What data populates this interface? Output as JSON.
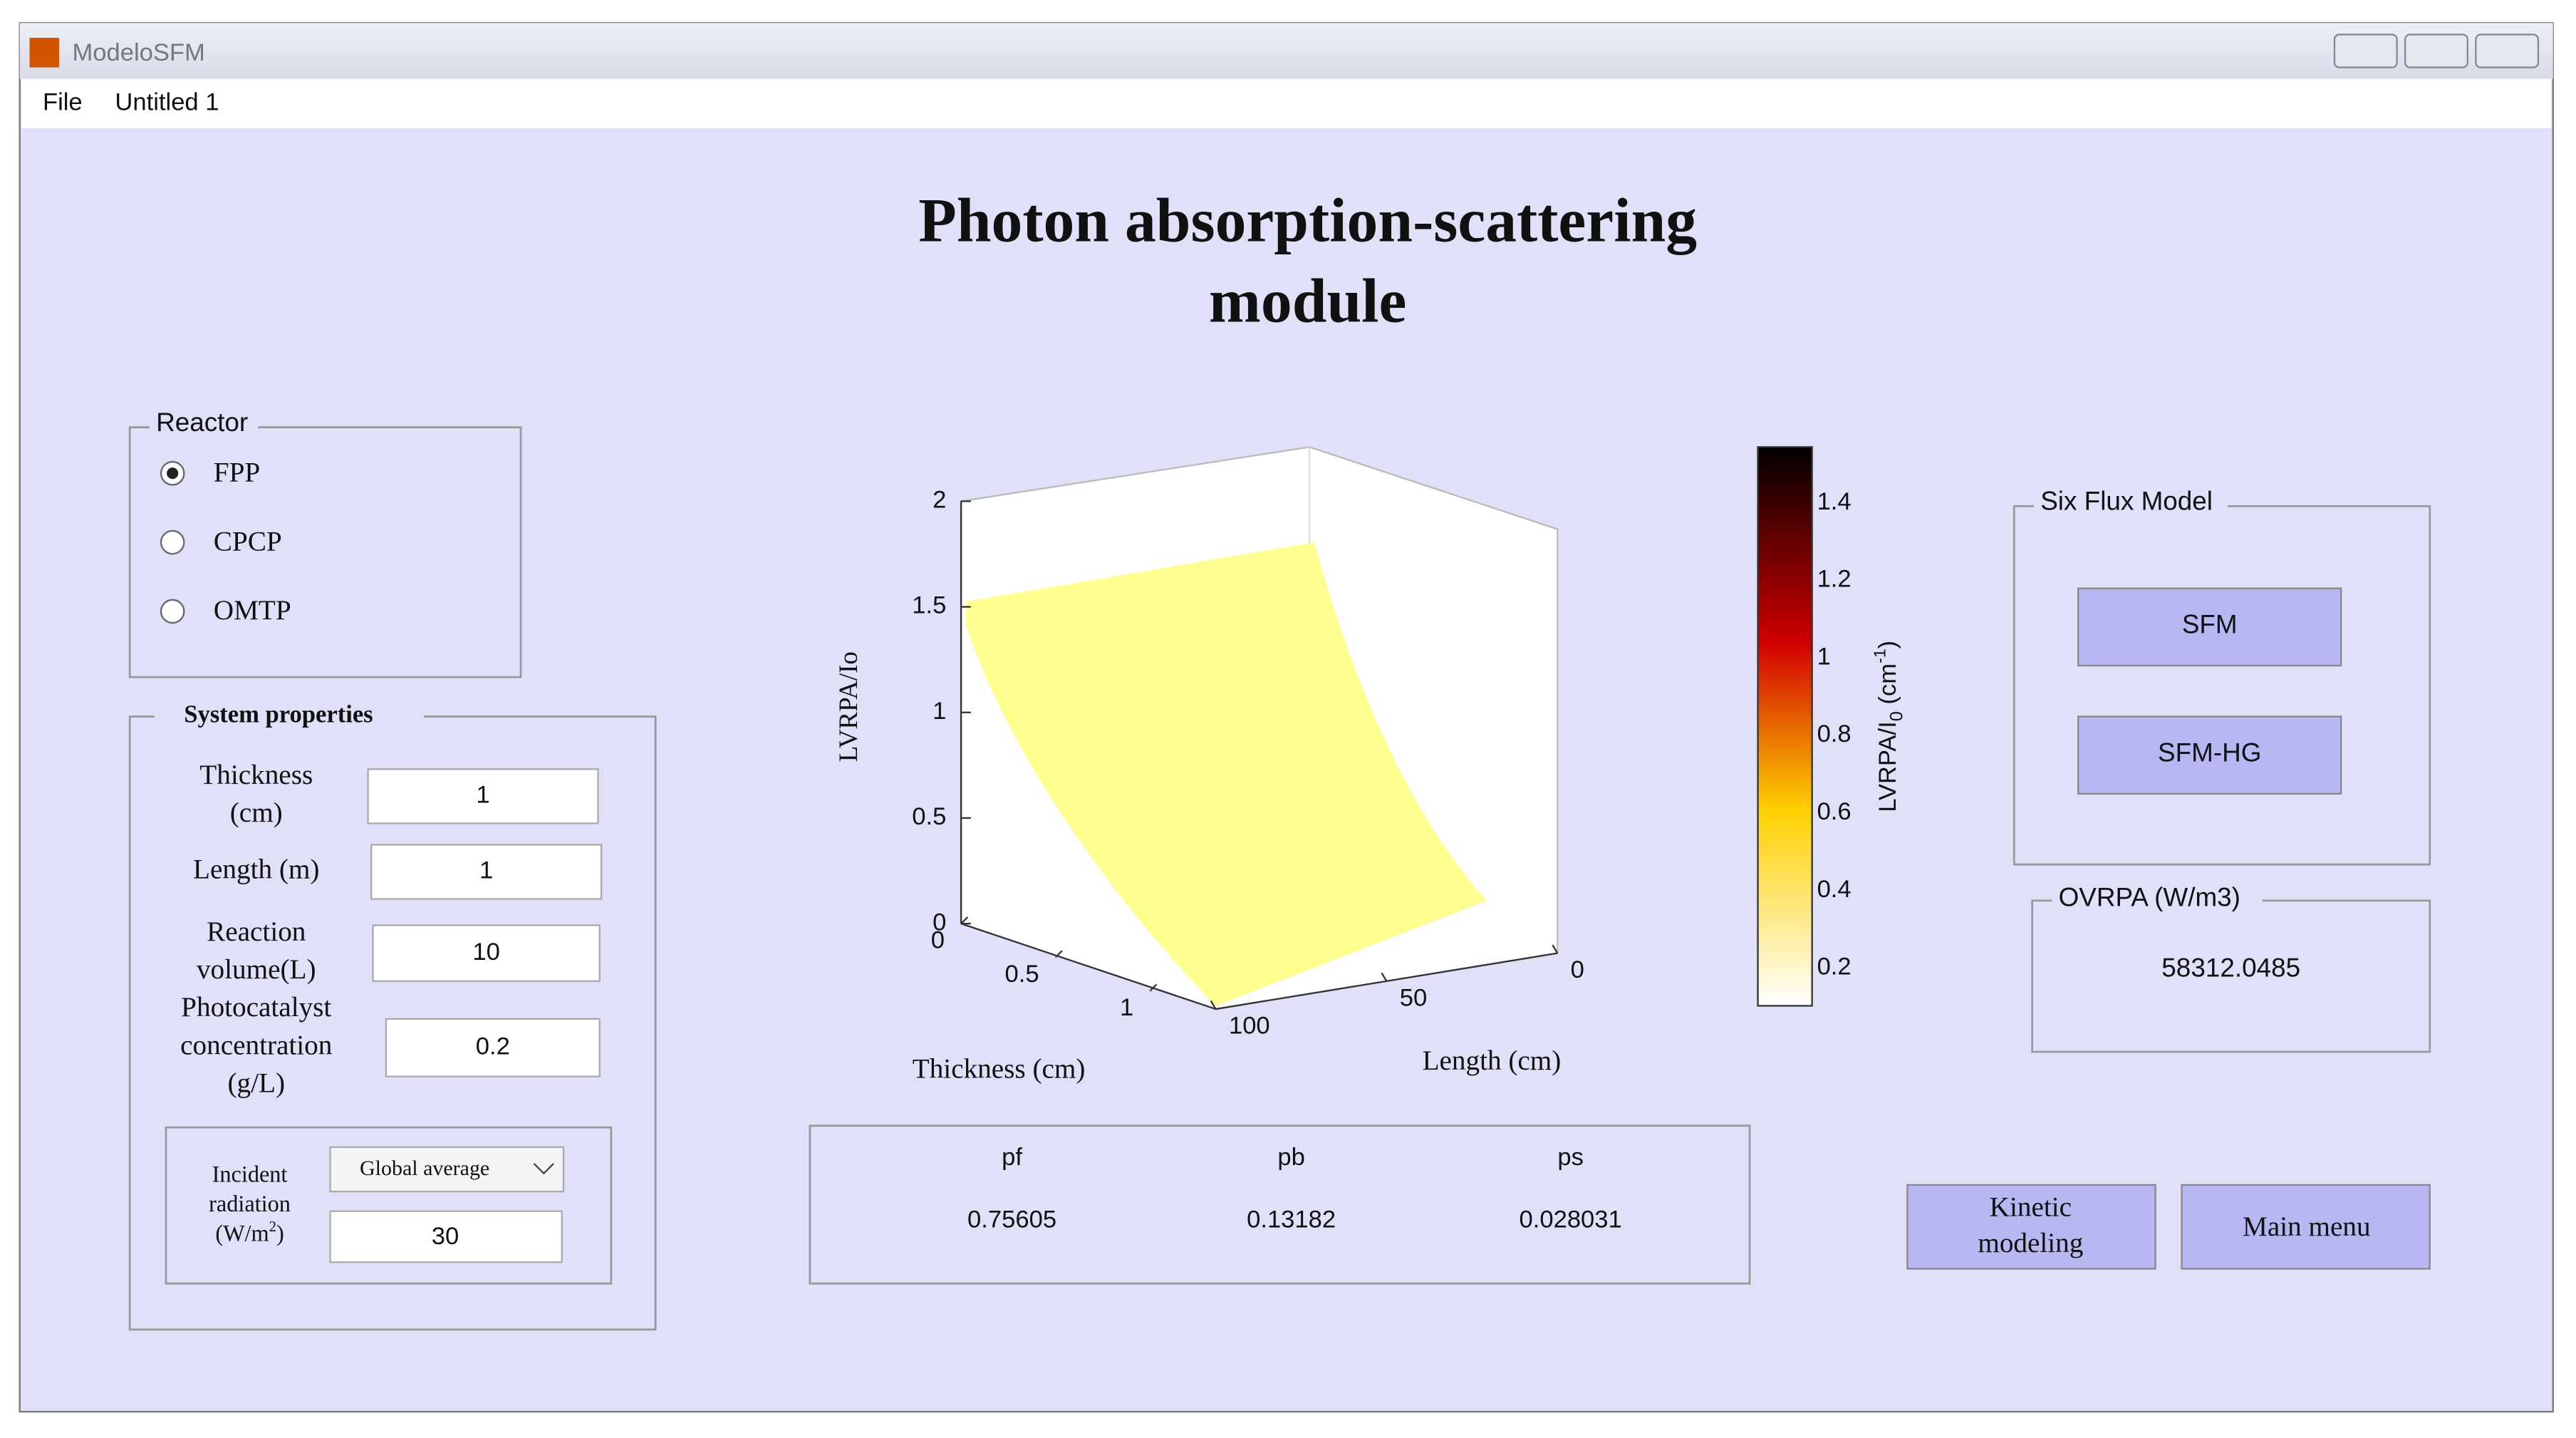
{
  "window": {
    "title": "ModeloSFM"
  },
  "menu": [
    "File",
    "Untitled 1"
  ],
  "heading": [
    "Photon absorption-scattering",
    "module"
  ],
  "reactor": {
    "legend": "Reactor",
    "options": [
      "FPP",
      "CPCP",
      "OMTP"
    ]
  },
  "system_properties": {
    "legend": "System properties",
    "fields": [
      {
        "label": [
          "Thickness",
          "(cm)"
        ],
        "value": "1"
      },
      {
        "label": [
          "Length (m)"
        ],
        "value": "1"
      },
      {
        "label": [
          "Reaction",
          "volume(L)"
        ],
        "value": "10"
      },
      {
        "label": [
          "Photocatalyst",
          "concentration",
          "(g/L)"
        ],
        "value": "0.2"
      }
    ],
    "incident": {
      "label": [
        "Incident",
        "radiation"
      ],
      "unit": [
        "(W/m",
        "2",
        ")"
      ],
      "dropdown": "Global average",
      "value": "30"
    }
  },
  "plot": {
    "zlabel": "LVRPA/Io",
    "xlabel": "Thickness (cm)",
    "ylabel": "Length (cm)",
    "zticks": [
      0,
      0.5,
      1,
      1.5,
      2
    ],
    "xticks": [
      0,
      0.5,
      1
    ],
    "yticks": [
      0,
      50,
      100
    ],
    "colorbar": {
      "ticks": [
        0.2,
        0.4,
        0.6,
        0.8,
        1,
        1.2,
        1.4
      ],
      "label": [
        "LVRPA/I",
        "0",
        " (cm",
        "-1",
        ")"
      ]
    }
  },
  "results": {
    "headers": [
      "pf",
      "pb",
      "ps"
    ],
    "values": [
      "0.75605",
      "0.13182",
      "0.028031"
    ]
  },
  "six_flux": {
    "legend": "Six Flux Model",
    "buttons": [
      "SFM",
      "SFM-HG"
    ]
  },
  "ovrpa": {
    "legend": "OVRPA (W/m3)",
    "value": "58312.0485"
  },
  "buttons": {
    "kinetic": [
      "Kinetic",
      "modeling"
    ],
    "main_menu": "Main menu"
  }
}
